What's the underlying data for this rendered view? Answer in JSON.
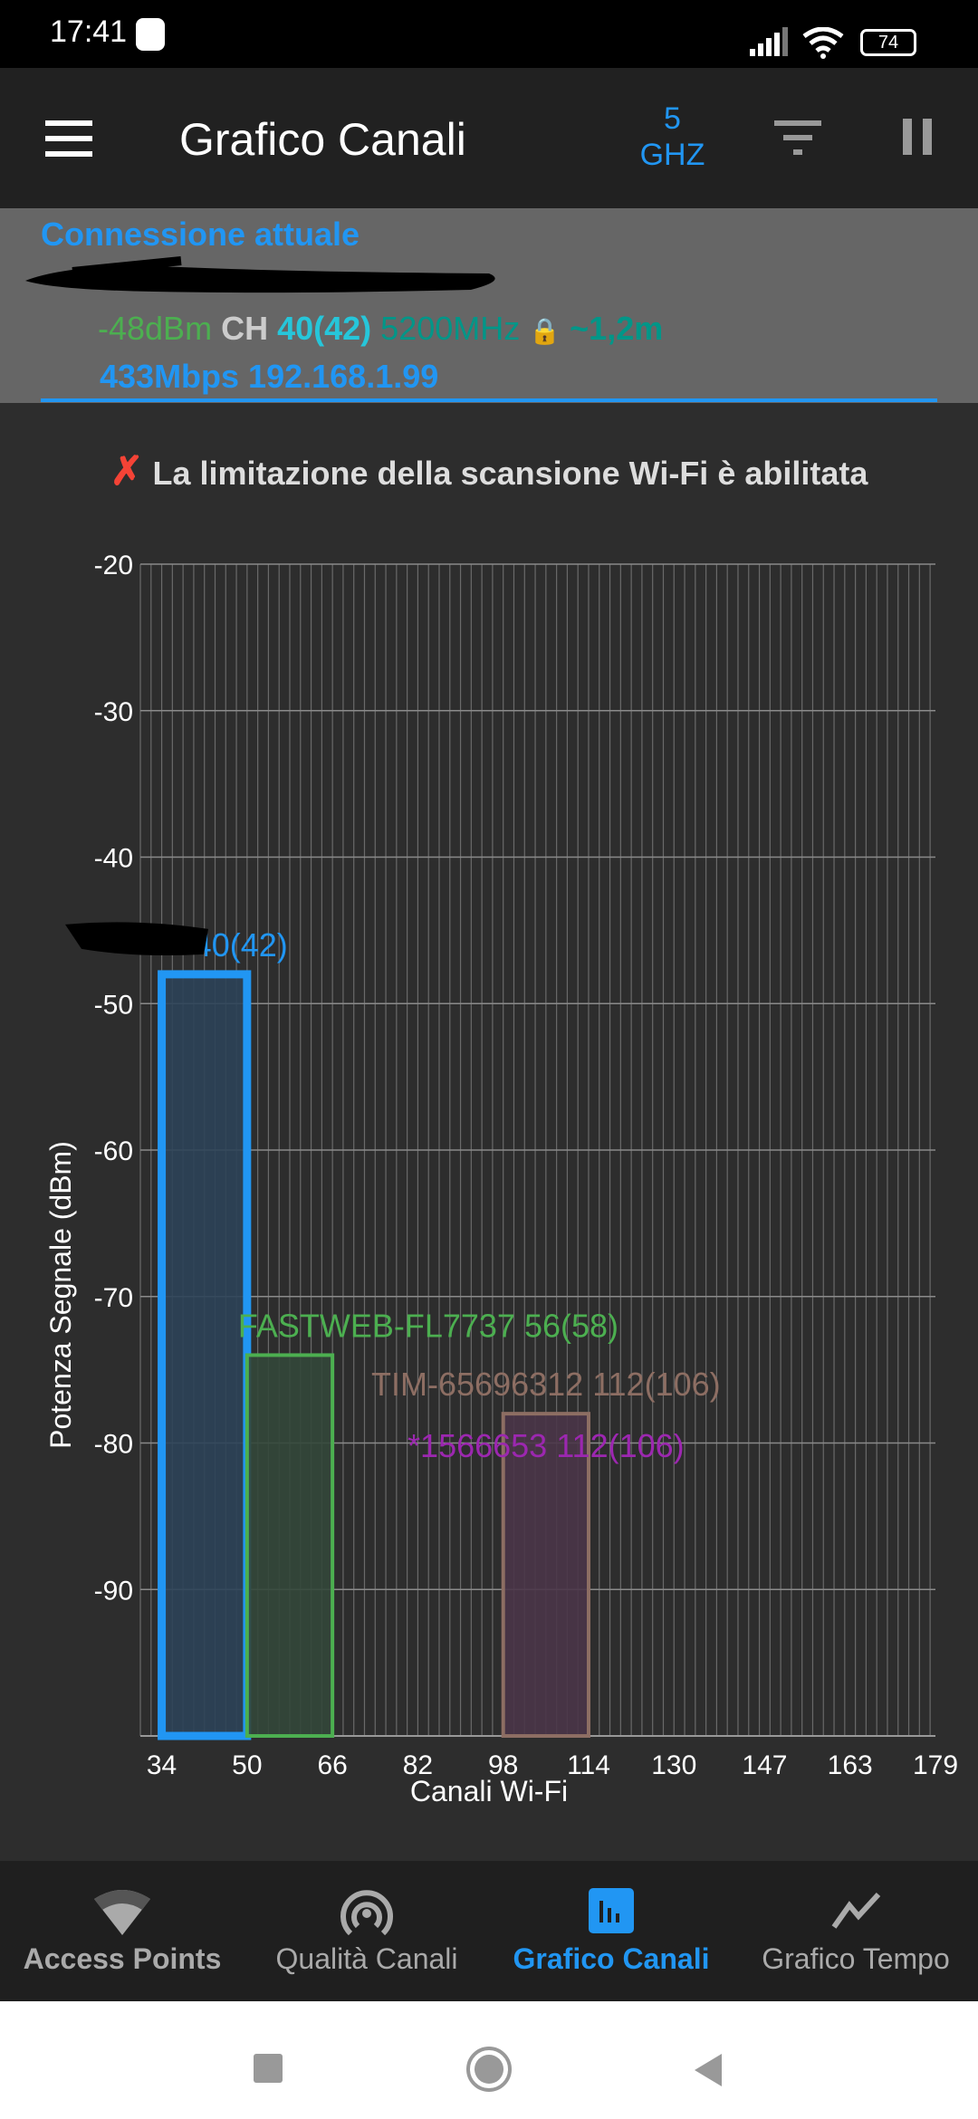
{
  "status_bar": {
    "time": "17:41",
    "battery": "74"
  },
  "app_bar": {
    "title": "Grafico Canali",
    "band_number": "5",
    "band_unit": "GHZ"
  },
  "connection": {
    "heading": "Connessione attuale",
    "signal": "-48dBm",
    "ch_label": "CH",
    "channel": "40(42)",
    "frequency": "5200MHz",
    "distance": "~1,2m",
    "speed_ip": "433Mbps 192.168.1.99"
  },
  "warning": {
    "text": "La limitazione della scansione Wi-Fi è abilitata"
  },
  "chart_data": {
    "type": "bar",
    "xlabel": "Canali Wi-Fi",
    "ylabel": "Potenza Segnale (dBm)",
    "xlim": [
      30,
      179
    ],
    "ylim": [
      -100,
      -20
    ],
    "x_ticks": [
      "34",
      "50",
      "66",
      "82",
      "98",
      "114",
      "130",
      "147",
      "163",
      "179"
    ],
    "y_ticks": [
      "-20",
      "-30",
      "-40",
      "-50",
      "-60",
      "-70",
      "-80",
      "-90"
    ],
    "grid": true,
    "series": [
      {
        "name": "40(42)",
        "from": 34,
        "to": 50,
        "value": -48,
        "color": "#2196f3",
        "fill": "#2c4258"
      },
      {
        "name": "FASTWEB-FL7737 56(58)",
        "from": 50,
        "to": 66,
        "value": -74,
        "color": "#4caf50",
        "fill": "#33473a"
      },
      {
        "name": "TIM-65696312 112(106)",
        "from": 98,
        "to": 114,
        "value": -78,
        "color": "#8d6e63",
        "fill": "#4a3548"
      },
      {
        "name": "*1566653 112(106)",
        "from": 98,
        "to": 114,
        "value": -78,
        "color": "#9c27b0",
        "fill": "#4a3548"
      }
    ]
  },
  "bottom_nav": [
    {
      "label": "Access Points",
      "icon": "wifi-icon"
    },
    {
      "label": "Qualità Canali",
      "icon": "signal-rings-icon"
    },
    {
      "label": "Grafico Canali",
      "icon": "bar-chart-icon",
      "active": true
    },
    {
      "label": "Grafico Tempo",
      "icon": "line-chart-icon"
    }
  ],
  "colors": {
    "accent": "#2196f3",
    "panel": "#666666",
    "background": "#2d2d2d"
  }
}
